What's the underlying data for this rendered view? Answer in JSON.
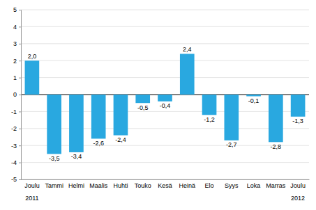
{
  "chart_data": {
    "type": "bar",
    "categories": [
      "Joulu",
      "Tammi",
      "Helmi",
      "Maalis",
      "Huhti",
      "Touko",
      "Kesä",
      "Heinä",
      "Elo",
      "Syys",
      "Loka",
      "Marras",
      "Joulu"
    ],
    "values": [
      2.0,
      -3.5,
      -3.4,
      -2.6,
      -2.4,
      -0.5,
      -0.4,
      2.4,
      -1.2,
      -2.7,
      -0.1,
      -2.8,
      -1.3
    ],
    "value_labels": [
      "2,0",
      "-3,5",
      "-3,4",
      "-2,6",
      "-2,4",
      "-0,5",
      "-0,4",
      "2,4",
      "-1,2",
      "-2,7",
      "-0,1",
      "-2,8",
      "-1,3"
    ],
    "color": "#29a8e0",
    "ylim": [
      -5,
      5
    ],
    "yticks": [
      -5,
      -4,
      -3,
      -2,
      -1,
      0,
      1,
      2,
      3,
      4,
      5
    ],
    "grid": true,
    "data_labels": true,
    "annotations": [
      "2011",
      "2012"
    ]
  }
}
